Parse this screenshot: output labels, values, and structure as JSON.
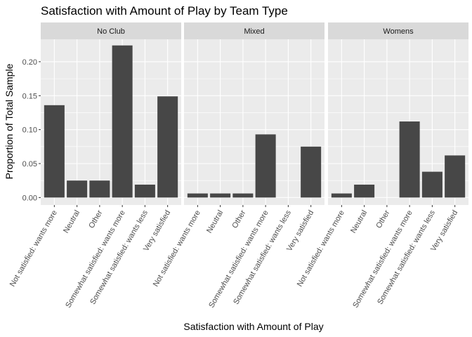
{
  "chart_data": {
    "type": "bar",
    "title": "Satisfaction with Amount of Play by Team Type",
    "xlabel": "Satisfaction with Amount of Play",
    "ylabel": "Proportion of Total Sample",
    "ylim": [
      -0.011,
      0.233
    ],
    "yticks": [
      0.0,
      0.05,
      0.1,
      0.15,
      0.2
    ],
    "ytick_labels": [
      "0.00",
      "0.05",
      "0.10",
      "0.15",
      "0.20"
    ],
    "grid": true,
    "bar_color": "#474747",
    "panel_background": "#ebebeb",
    "strip_background": "#d9d9d9",
    "gridline_color": "#ffffff",
    "categories": [
      "Not satisfied: wants more",
      "Neutral",
      "Other",
      "Somewhat satisfied: wants more",
      "Somewhat satisfied: wants less",
      "Very satisfied"
    ],
    "panels": [
      {
        "name": "No Club",
        "values": [
          0.136,
          0.025,
          0.025,
          0.224,
          0.019,
          0.149
        ]
      },
      {
        "name": "Mixed",
        "values": [
          0.006,
          0.006,
          0.006,
          0.093,
          0,
          0.075
        ]
      },
      {
        "name": "Womens",
        "values": [
          0.006,
          0.019,
          0,
          0.112,
          0.038,
          0.062
        ]
      }
    ]
  }
}
